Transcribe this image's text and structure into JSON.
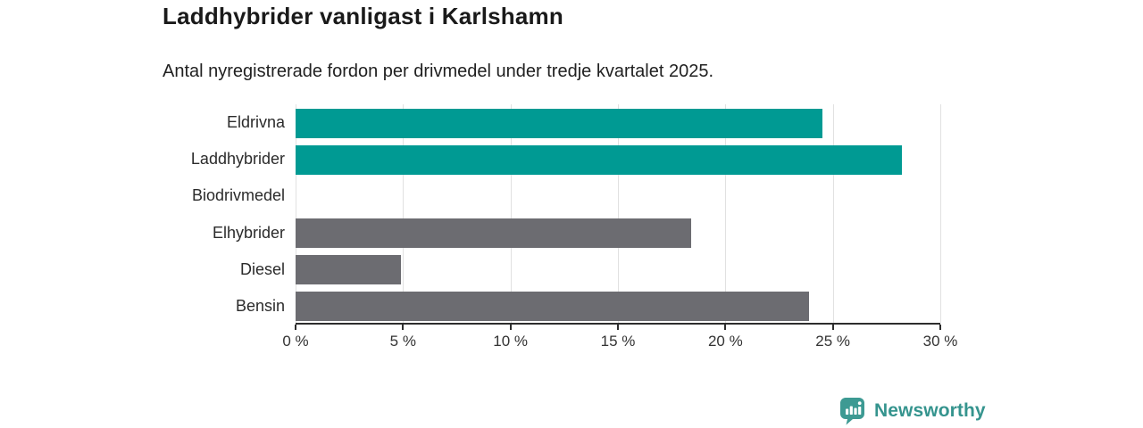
{
  "header": {
    "title": "Laddhybrider vanligast i Karlshamn",
    "subtitle": "Antal nyregistrerade fordon per drivmedel under tredje kvartalet 2025."
  },
  "chart_data": {
    "type": "bar",
    "orientation": "horizontal",
    "title": "Laddhybrider vanligast i Karlshamn",
    "subtitle": "Antal nyregistrerade fordon per drivmedel under tredje kvartalet 2025.",
    "categories": [
      "Eldrivna",
      "Laddhybrider",
      "Biodrivmedel",
      "Elhybrider",
      "Diesel",
      "Bensin"
    ],
    "values": [
      24.5,
      28.2,
      0,
      18.4,
      4.9,
      23.9
    ],
    "unit": "%",
    "xlabel": "",
    "ylabel": "",
    "xlim": [
      0,
      30
    ],
    "xticks": [
      0,
      5,
      10,
      15,
      20,
      25,
      30
    ],
    "xtick_labels": [
      "0 %",
      "5 %",
      "10 %",
      "15 %",
      "20 %",
      "25 %",
      "30 %"
    ],
    "grid": "vertical",
    "legend": "none",
    "bar_colors": [
      "#009a93",
      "#009a93",
      "#6c6c71",
      "#6c6c71",
      "#6c6c71",
      "#6c6c71"
    ],
    "highlight_categories": [
      "Eldrivna",
      "Laddhybrider"
    ]
  },
  "colors": {
    "accent_teal": "#009a93",
    "neutral_gray": "#6c6c71",
    "gridline": "#e1e1e1",
    "axis": "#2d2d2d",
    "title_text": "#1a1a1a",
    "body_text": "#2b2b2b",
    "logo_teal": "#35948e"
  },
  "footer": {
    "brand": "Newsworthy",
    "logo_icon": "bar-chart-speech-bubble-icon"
  }
}
